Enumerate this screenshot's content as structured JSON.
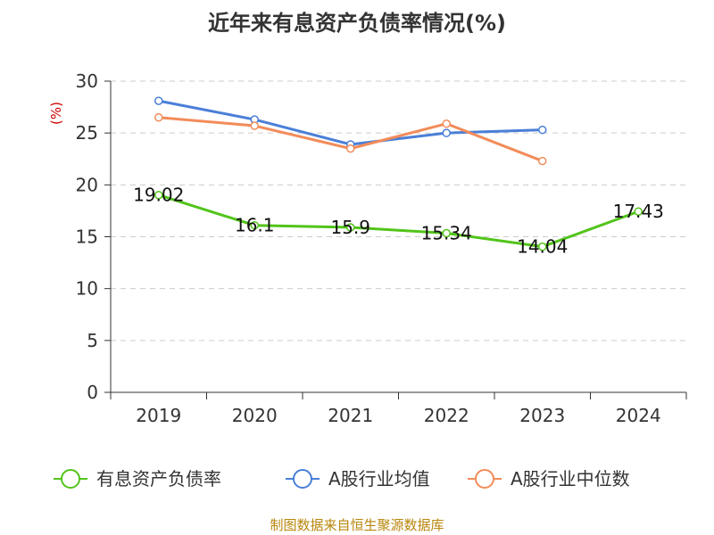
{
  "chart_data": {
    "type": "line",
    "title": "近年来有息资产负债率情况(%)",
    "ylabel": "(%)",
    "xlabel": "",
    "ylim": [
      0,
      30
    ],
    "yticks": [
      0,
      5,
      10,
      15,
      20,
      25,
      30
    ],
    "grid": true,
    "legend_position": "bottom",
    "categories": [
      "2019",
      "2020",
      "2021",
      "2022",
      "2023",
      "2024"
    ],
    "series": [
      {
        "name": "有息资产负债率",
        "color": "#52c41a",
        "values": [
          19.02,
          16.1,
          15.9,
          15.34,
          14.04,
          17.43
        ],
        "labels": [
          "19.02",
          "16.1",
          "15.9",
          "15.34",
          "14.04",
          "17.43"
        ]
      },
      {
        "name": "A股行业均值",
        "color": "#4a7fd8",
        "values": [
          28.1,
          26.3,
          23.9,
          25.0,
          25.3,
          null
        ]
      },
      {
        "name": "A股行业中位数",
        "color": "#f28c5a",
        "values": [
          26.5,
          25.7,
          23.5,
          25.9,
          22.3,
          null
        ]
      }
    ]
  },
  "source": "制图数据来自恒生聚源数据库"
}
